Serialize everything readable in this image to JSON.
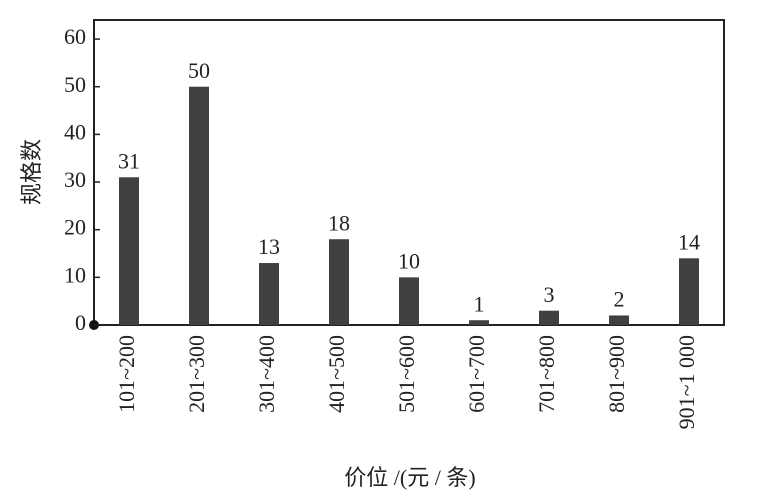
{
  "chart_data": {
    "type": "bar",
    "x_label": "价位 /(元 / 条)",
    "y_label": "规格数",
    "categories": [
      "101~200",
      "201~300",
      "301~400",
      "401~500",
      "501~600",
      "601~700",
      "701~800",
      "801~900",
      "901~1 000"
    ],
    "values": [
      31,
      50,
      13,
      18,
      10,
      1,
      3,
      2,
      14
    ],
    "color": "#404040",
    "ylim": [
      0,
      64
    ],
    "yticks": [
      0,
      10,
      20,
      30,
      40,
      50,
      60
    ],
    "grid": false
  }
}
